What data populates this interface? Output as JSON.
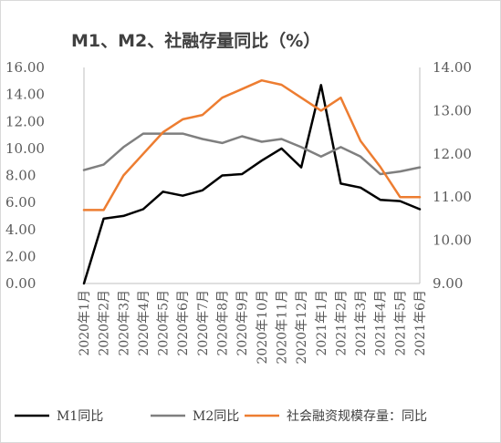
{
  "chart_data": {
    "type": "line",
    "title": "M1、M2、社融存量同比（%）",
    "categories": [
      "2020年1月",
      "2020年2月",
      "2020年3月",
      "2020年4月",
      "2020年5月",
      "2020年6月",
      "2020年7月",
      "2020年8月",
      "2020年9月",
      "2020年10月",
      "2020年11月",
      "2020年12月",
      "2021年1月",
      "2021年2月",
      "2021年3月",
      "2021年4月",
      "2021年5月",
      "2021年6月"
    ],
    "left_axis": {
      "min": 0,
      "max": 16,
      "ticks": [
        "0.00",
        "2.00",
        "4.00",
        "6.00",
        "8.00",
        "10.00",
        "12.00",
        "14.00",
        "16.00"
      ]
    },
    "right_axis": {
      "min": 9,
      "max": 14,
      "ticks": [
        "9.00",
        "10.00",
        "11.00",
        "12.00",
        "13.00",
        "14.00"
      ]
    },
    "series": [
      {
        "name": "M1同比",
        "axis": "left",
        "color": "#000000",
        "values": [
          0.0,
          4.8,
          5.0,
          5.5,
          6.8,
          6.5,
          6.9,
          8.0,
          8.1,
          9.1,
          10.0,
          8.6,
          14.7,
          7.4,
          7.1,
          6.2,
          6.1,
          5.5
        ]
      },
      {
        "name": "M2同比",
        "axis": "left",
        "color": "#7f7f7f",
        "values": [
          8.4,
          8.8,
          10.1,
          11.1,
          11.1,
          11.1,
          10.7,
          10.4,
          10.9,
          10.5,
          10.7,
          10.1,
          9.4,
          10.1,
          9.4,
          8.1,
          8.3,
          8.6
        ]
      },
      {
        "name": "社会融资规模存量：同比",
        "axis": "right",
        "color": "#ed7d31",
        "values": [
          10.7,
          10.7,
          11.5,
          12.0,
          12.5,
          12.8,
          12.9,
          13.3,
          13.5,
          13.7,
          13.6,
          13.3,
          13.0,
          13.3,
          12.3,
          11.7,
          11.0,
          11.0
        ]
      }
    ],
    "legend_position": "bottom",
    "grid": false
  }
}
